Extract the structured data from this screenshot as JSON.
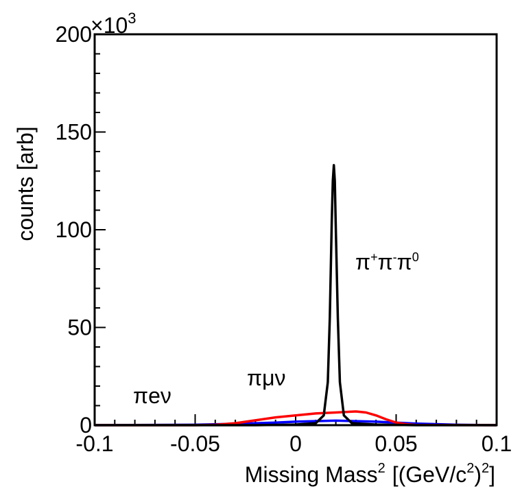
{
  "chart_data": {
    "type": "line",
    "xlabel": "Missing Mass",
    "xlabel_sup": "2",
    "xlabel_unit_pre": "[(GeV/c",
    "xlabel_unit_sup1": "2",
    "xlabel_unit_mid": ")",
    "xlabel_unit_sup2": "2",
    "xlabel_unit_post": "]",
    "ylabel": "counts [arb]",
    "y_multiplier": "×10",
    "y_multiplier_exp": "3",
    "xlim": [
      -0.1,
      0.1
    ],
    "ylim": [
      0,
      200
    ],
    "x_ticks": [
      "-0.1",
      "-0.05",
      "0",
      "0.05",
      "0.1"
    ],
    "y_ticks": [
      "0",
      "50",
      "100",
      "150",
      "200"
    ],
    "series": [
      {
        "name": "π+π-π0",
        "color": "#000000",
        "x": [
          -0.1,
          -0.05,
          -0.02,
          0.0,
          0.01,
          0.014,
          0.016,
          0.017,
          0.018,
          0.0185,
          0.019,
          0.0195,
          0.02,
          0.021,
          0.022,
          0.024,
          0.028,
          0.04,
          0.06,
          0.1
        ],
        "y": [
          0,
          0,
          0,
          0.3,
          1,
          5,
          22,
          55,
          105,
          125,
          133,
          125,
          100,
          55,
          22,
          5,
          1,
          0.3,
          0,
          0
        ]
      },
      {
        "name": "πμν",
        "color": "#ff0000",
        "x": [
          -0.1,
          -0.05,
          -0.04,
          -0.03,
          -0.02,
          -0.01,
          0.0,
          0.01,
          0.02,
          0.03,
          0.035,
          0.04,
          0.045,
          0.05,
          0.055,
          0.06,
          0.1
        ],
        "y": [
          0,
          0,
          0.2,
          1,
          2.5,
          4,
          5,
          6,
          6.5,
          7,
          6.5,
          5,
          3,
          1.3,
          0.5,
          0.1,
          0
        ]
      },
      {
        "name": "πeν",
        "color": "#0000ff",
        "x": [
          -0.1,
          -0.05,
          -0.03,
          -0.01,
          0.0,
          0.02,
          0.04,
          0.06,
          0.08,
          0.1
        ],
        "y": [
          0,
          0.2,
          0.7,
          1.3,
          1.8,
          2.3,
          1.8,
          0.8,
          0.2,
          0
        ]
      }
    ],
    "annotations": [
      {
        "base": "π",
        "sup1": "+",
        "mid1": "π",
        "sup2": "-",
        "mid2": "π",
        "sup3": "0",
        "color": "#000000"
      },
      {
        "text": "πμν",
        "color": "#ff0000"
      },
      {
        "text": "πeν",
        "color": "#0000ff"
      }
    ]
  }
}
